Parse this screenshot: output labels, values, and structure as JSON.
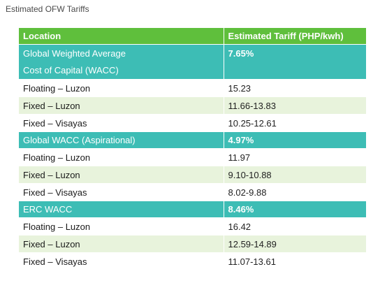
{
  "caption": "Estimated OFW Tariffs",
  "table": {
    "headers": [
      "Location",
      "Estimated Tariff (PHP/kwh)"
    ],
    "groups": [
      {
        "name": "Global Weighted Average Cost of Capital (WACC)",
        "name_line1": "Global Weighted Average",
        "name_line2": "Cost of Capital (WACC)",
        "value": "7.65%",
        "rows": [
          {
            "location": "Floating – Luzon",
            "tariff": "15.23"
          },
          {
            "location": "Fixed – Luzon",
            "tariff": "11.66-13.83"
          },
          {
            "location": "Fixed – Visayas",
            "tariff": "10.25-12.61"
          }
        ]
      },
      {
        "name": "Global WACC (Aspirational)",
        "value": "4.97%",
        "rows": [
          {
            "location": "Floating – Luzon",
            "tariff": "11.97"
          },
          {
            "location": "Fixed – Luzon",
            "tariff": "9.10-10.88"
          },
          {
            "location": "Fixed – Visayas",
            "tariff": "8.02-9.88"
          }
        ]
      },
      {
        "name": "ERC WACC",
        "value": "8.46%",
        "rows": [
          {
            "location": "Floating – Luzon",
            "tariff": "16.42"
          },
          {
            "location": "Fixed – Luzon",
            "tariff": "12.59-14.89"
          },
          {
            "location": "Fixed – Visayas",
            "tariff": "11.07-13.61"
          }
        ]
      }
    ]
  },
  "colors": {
    "header_green": "#5fbf3c",
    "group_teal": "#3dbdb5",
    "row_shade": "#e8f3dc"
  }
}
